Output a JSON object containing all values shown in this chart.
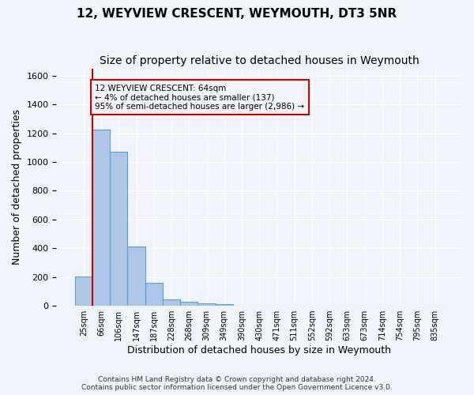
{
  "title": "12, WEYVIEW CRESCENT, WEYMOUTH, DT3 5NR",
  "subtitle": "Size of property relative to detached houses in Weymouth",
  "xlabel": "Distribution of detached houses by size in Weymouth",
  "ylabel": "Number of detached properties",
  "bar_values": [
    205,
    1225,
    1070,
    410,
    160,
    45,
    28,
    18,
    14,
    0,
    0,
    0,
    0,
    0,
    0,
    0,
    0,
    0,
    0,
    0,
    0
  ],
  "bar_labels": [
    "25sqm",
    "66sqm",
    "106sqm",
    "147sqm",
    "187sqm",
    "228sqm",
    "268sqm",
    "309sqm",
    "349sqm",
    "390sqm",
    "430sqm",
    "471sqm",
    "511sqm",
    "552sqm",
    "592sqm",
    "633sqm",
    "673sqm",
    "714sqm",
    "754sqm",
    "795sqm",
    "835sqm"
  ],
  "bar_color": "#aec6e8",
  "bar_edge_color": "#5a9fd4",
  "ylim": [
    0,
    1650
  ],
  "yticks": [
    0,
    200,
    400,
    600,
    800,
    1000,
    1200,
    1400,
    1600
  ],
  "vline_x": 0.5,
  "annotation_title": "12 WEYVIEW CRESCENT: 64sqm",
  "annotation_line1": "← 4% of detached houses are smaller (137)",
  "annotation_line2": "95% of semi-detached houses are larger (2,986) →",
  "annotation_box_color": "#cc0000",
  "footer_line1": "Contains HM Land Registry data © Crown copyright and database right 2024.",
  "footer_line2": "Contains public sector information licensed under the Open Government Licence v3.0.",
  "background_color": "#f0f4fa",
  "grid_color": "#ffffff",
  "title_fontsize": 11,
  "subtitle_fontsize": 10,
  "xlabel_fontsize": 9,
  "ylabel_fontsize": 9
}
